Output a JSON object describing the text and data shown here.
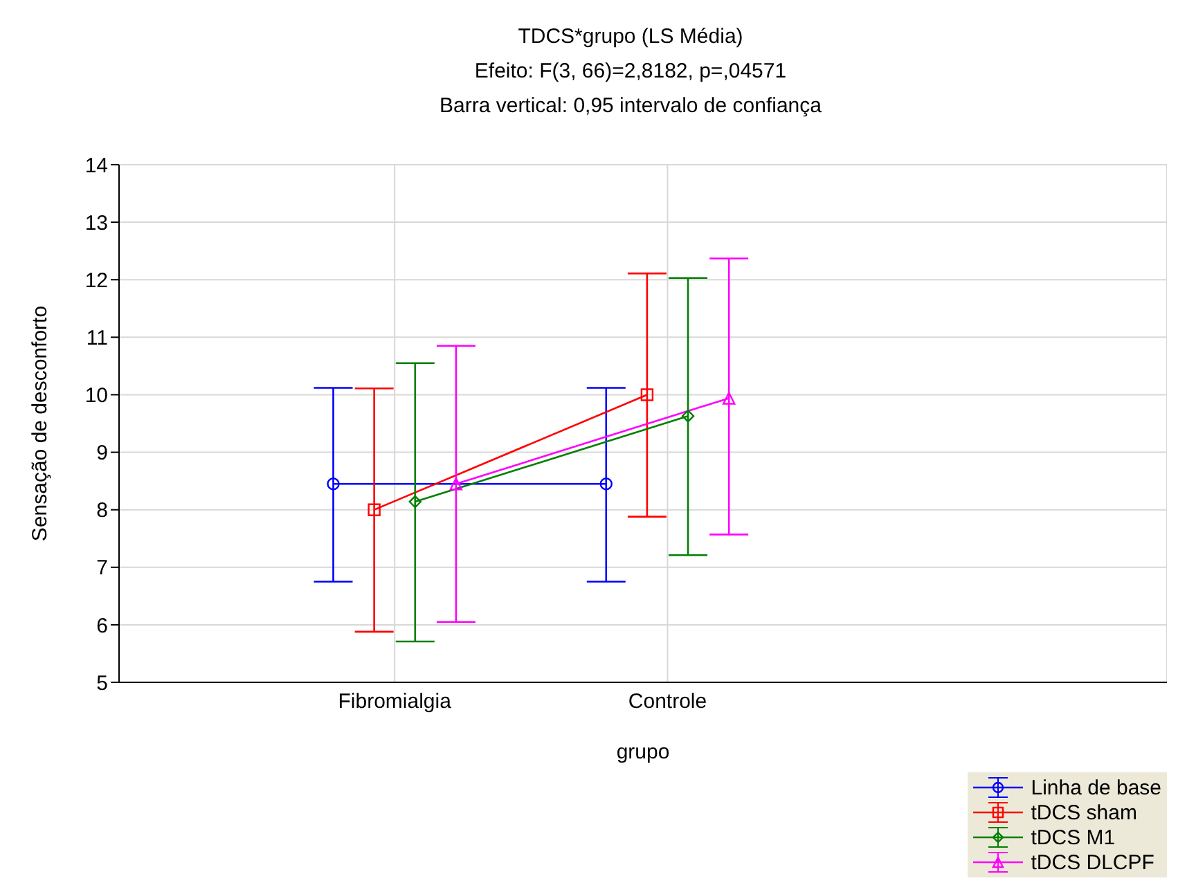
{
  "chart_data": {
    "type": "line",
    "title": "TDCS*grupo (LS Média)",
    "subtitle": "Efeito: F(3, 66)=2,8182, p=,04571",
    "annotations": [
      "Barra vertical: 0,95 intervalo de confiança"
    ],
    "xlabel": "grupo",
    "ylabel": "Sensação de desconforto",
    "categories": [
      "Fibromialgia",
      "Controle"
    ],
    "ylim": [
      5,
      14
    ],
    "yticks": [
      5,
      6,
      7,
      8,
      9,
      10,
      11,
      12,
      13,
      14
    ],
    "grid": true,
    "legend": "bottom right",
    "series": [
      {
        "name": "Linha de base",
        "color": "#0000ff",
        "marker": "circle",
        "values": [
          8.45,
          8.45
        ],
        "errors": [
          [
            6.75,
            10.12
          ],
          [
            6.75,
            10.12
          ]
        ]
      },
      {
        "name": "tDCS sham",
        "color": "#ff0000",
        "marker": "square",
        "values": [
          8.0,
          10.0
        ],
        "errors": [
          [
            5.88,
            10.11
          ],
          [
            7.88,
            12.11
          ]
        ]
      },
      {
        "name": "tDCS M1",
        "color": "#008000",
        "marker": "diamond",
        "values": [
          8.14,
          9.63
        ],
        "errors": [
          [
            5.71,
            10.55
          ],
          [
            7.21,
            12.03
          ]
        ]
      },
      {
        "name": "tDCS DLCPF",
        "color": "#ff00ff",
        "marker": "triangle",
        "values": [
          8.45,
          9.94
        ],
        "errors": [
          [
            6.05,
            10.85
          ],
          [
            7.57,
            12.37
          ]
        ]
      }
    ]
  }
}
